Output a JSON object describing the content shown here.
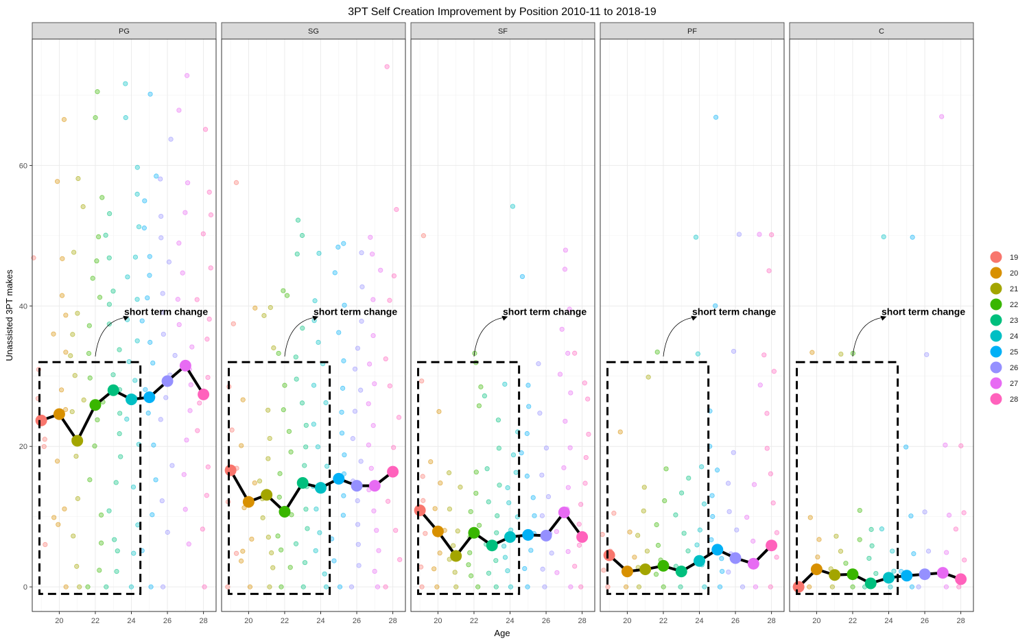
{
  "chart_data": {
    "type": "scatter",
    "title": "3PT Self Creation Improvement by Position 2010-11 to 2018-19",
    "xlabel": "Age",
    "ylabel": "Unassisted 3PT makes",
    "xlim": [
      18.5,
      28.7
    ],
    "ylim": [
      -3.5,
      78
    ],
    "xticks": [
      20,
      22,
      24,
      26,
      28
    ],
    "yticks": [
      0,
      20,
      40,
      60
    ],
    "grid": true,
    "legend_position": "right",
    "annotation_label": "short term change",
    "annotation_box": {
      "x": [
        18.9,
        24.5
      ],
      "y": [
        -1,
        32
      ]
    },
    "colors": {
      "19": "#F8766D",
      "20": "#D89000",
      "21": "#A3A500",
      "22": "#39B600",
      "23": "#00BF7D",
      "24": "#00BFC4",
      "25": "#00B0F6",
      "26": "#9590FF",
      "27": "#E76BF3",
      "28": "#FF62BC"
    },
    "legend": [
      "19",
      "20",
      "21",
      "22",
      "23",
      "24",
      "25",
      "26",
      "27",
      "28"
    ],
    "panels": [
      {
        "position": "PG",
        "ages": [
          19,
          20,
          21,
          22,
          23,
          24,
          25,
          26,
          27,
          28
        ],
        "means": [
          23.7,
          24.6,
          20.8,
          25.9,
          28.0,
          26.7,
          27.0,
          29.3,
          31.5,
          27.4
        ],
        "points": [
          [
            [
              46.6,
              27,
              21,
              30.8,
              6,
              19.9
            ],
            [
              66.7,
              57.6,
              47,
              41.5,
              38.5,
              36,
              33.3,
              28,
              25,
              18,
              11.2,
              10,
              9,
              0
            ],
            [
              58,
              54.4,
              47.6,
              39,
              35.7,
              33,
              30,
              26.6,
              25,
              21.1,
              18.7,
              12.5,
              7,
              2.7,
              0
            ],
            [
              70.5,
              66.7,
              55.5,
              50,
              46.5,
              44,
              41,
              37,
              33.3,
              30,
              26.5,
              24,
              20,
              15,
              10,
              6,
              2.5,
              0
            ],
            [
              53.4,
              50,
              46.7,
              42,
              40,
              37.5,
              34,
              30.5,
              28,
              25,
              22,
              18.5,
              15,
              11,
              7,
              5,
              2.2,
              0
            ],
            [
              71.4,
              66.7,
              60,
              55.7,
              51,
              47,
              44,
              41,
              38.1,
              35,
              32,
              29.5,
              27,
              24,
              20,
              14,
              9,
              5,
              0
            ],
            [
              70,
              58.5,
              55,
              51,
              47,
              44.2,
              41,
              38,
              35,
              32,
              28,
              25,
              20,
              15,
              10,
              5,
              0
            ],
            [
              63.5,
              58.3,
              53,
              50,
              46,
              42,
              39,
              36,
              33,
              30,
              27,
              24,
              17,
              12,
              8,
              0
            ],
            [
              73,
              68,
              57.5,
              53,
              49,
              45,
              41,
              37.5,
              34,
              31,
              28.5,
              25,
              21,
              16,
              11,
              6
            ],
            [
              65,
              56,
              53,
              50,
              45.5,
              41,
              38,
              35,
              30,
              26,
              22,
              17,
              13,
              8,
              0
            ]
          ]
        ]
      },
      {
        "position": "SG",
        "ages": [
          19,
          20,
          21,
          22,
          23,
          24,
          25,
          26,
          27,
          28
        ],
        "means": [
          16.6,
          12.1,
          13.1,
          10.7,
          14.8,
          14.1,
          15.4,
          14.4,
          14.4,
          16.4
        ],
        "points": [
          [
            [
              57.7,
              37.5,
              28.7,
              22.5,
              16.7,
              12,
              5,
              0
            ],
            [
              40,
              26.7,
              20,
              15,
              11,
              7,
              5,
              3.5,
              0
            ],
            [
              40,
              38.5,
              34,
              25,
              21,
              18.5,
              15,
              12.5,
              10,
              7,
              5,
              3,
              0
            ],
            [
              42,
              41.3,
              33,
              28.5,
              25,
              22,
              19,
              16,
              13,
              10,
              7.5,
              5,
              2.5,
              0
            ],
            [
              52.5,
              50,
              47.5,
              37,
              33,
              29.5,
              26,
              23,
              20,
              17,
              14,
              11,
              8.5,
              6,
              3.5,
              0
            ],
            [
              47.5,
              41,
              38,
              35,
              32,
              29,
              26,
              23,
              20,
              17,
              14,
              11,
              8,
              5,
              2,
              0
            ],
            [
              49,
              48.5,
              44.5,
              40,
              36,
              32,
              28,
              25,
              22,
              19,
              16,
              13,
              10,
              7,
              4,
              0
            ],
            [
              47.5,
              42.5,
              38,
              34,
              31,
              28,
              25,
              21,
              18,
              15,
              12,
              9,
              6,
              3,
              0
            ],
            [
              50,
              47.3,
              45,
              41,
              36,
              32,
              29,
              26,
              23,
              20,
              17,
              14,
              11,
              8,
              5,
              2,
              0
            ],
            [
              74,
              53.5,
              44,
              40.5,
              32.7,
              28.4,
              24,
              20,
              16,
              12,
              8,
              4,
              0
            ]
          ]
        ]
      },
      {
        "position": "SF",
        "ages": [
          19,
          20,
          21,
          22,
          23,
          24,
          25,
          26,
          27,
          28
        ],
        "means": [
          10.9,
          7.9,
          4.4,
          7.7,
          5.9,
          7.1,
          7.4,
          7.3,
          10.6,
          7.1
        ],
        "points": [
          [
            [
              50,
              29.2,
              16,
              12,
              7.5,
              3,
              0
            ],
            [
              25,
              17.6,
              14.5,
              11,
              8,
              5,
              2.6,
              0
            ],
            [
              16.2,
              14,
              11.2,
              8,
              6,
              4,
              2,
              0
            ],
            [
              33.3,
              31.7,
              28.5,
              25.5,
              16.4,
              13.6,
              11,
              9,
              7,
              5,
              3,
              1.5,
              0
            ],
            [
              27,
              23.6,
              20,
              17.1,
              14.5,
              12.1,
              10,
              8,
              6,
              4,
              2,
              0
            ],
            [
              54.1,
              28.6,
              22,
              19,
              16.5,
              14,
              12,
              10,
              8,
              6,
              4,
              2,
              0
            ],
            [
              44.2,
              29,
              25.5,
              22,
              19,
              16,
              13,
              10,
              7.5,
              5,
              2.5,
              0
            ],
            [
              32,
              25,
              20,
              16,
              13,
              10,
              7.5,
              5,
              2.5,
              0
            ],
            [
              48,
              45,
              39.6,
              36.4,
              33,
              30,
              27.5,
              23.5,
              20,
              17,
              14,
              11,
              8,
              5,
              2,
              0
            ],
            [
              33,
              29,
              26.5,
              22,
              18.5,
              15,
              12,
              9,
              6,
              3,
              0
            ]
          ]
        ]
      },
      {
        "position": "PF",
        "ages": [
          19,
          20,
          21,
          22,
          23,
          24,
          25,
          26,
          27,
          28
        ],
        "means": [
          4.5,
          2.2,
          2.5,
          3.0,
          2.2,
          3.7,
          5.3,
          4.1,
          3.3,
          5.9
        ],
        "points": [
          [
            [
              10.3,
              7.5,
              5,
              2.6,
              0
            ],
            [
              22.2,
              8,
              4,
              2,
              0
            ],
            [
              30,
              14.3,
              11,
              7.5,
              5,
              2.5,
              0
            ],
            [
              33.3,
              16.7,
              12,
              9,
              6,
              4,
              2,
              0
            ],
            [
              15.7,
              13.3,
              10,
              7.5,
              5,
              3,
              0
            ],
            [
              50,
              33,
              17,
              11.6,
              8.4,
              5.7,
              3,
              0
            ],
            [
              66.7,
              40,
              25,
              20,
              16.7,
              13,
              10,
              7,
              4,
              2,
              0
            ],
            [
              50,
              33.3,
              19.2,
              15,
              11,
              8,
              5,
              2,
              0
            ],
            [
              50,
              28.6,
              14.5,
              10,
              6.5,
              3,
              0
            ],
            [
              50,
              44.8,
              33.3,
              30.4,
              25,
              20,
              16,
              12,
              8,
              4,
              0
            ]
          ]
        ]
      },
      {
        "position": "C",
        "ages": [
          19,
          20,
          21,
          22,
          23,
          24,
          25,
          26,
          27,
          28
        ],
        "means": [
          0.0,
          2.5,
          1.7,
          1.8,
          0.5,
          1.3,
          1.6,
          1.8,
          2.0,
          1.1
        ],
        "points": [
          [
            [
              0
            ],
            [
              33.3,
              10,
              7,
              4,
              0
            ],
            [
              33.3,
              7.5,
              5,
              2.5,
              0
            ],
            [
              33.3,
              10.7,
              6.5,
              3.5,
              0
            ],
            [
              8.4,
              6,
              4,
              2,
              0
            ],
            [
              50,
              8,
              5,
              2.5,
              0
            ],
            [
              50,
              20,
              10,
              5,
              2,
              0
            ],
            [
              33.3,
              10.7,
              5,
              2,
              0
            ],
            [
              66.7,
              20,
              10,
              5,
              2,
              0
            ],
            [
              20,
              10.5,
              8,
              4,
              0
            ]
          ]
        ]
      }
    ]
  }
}
